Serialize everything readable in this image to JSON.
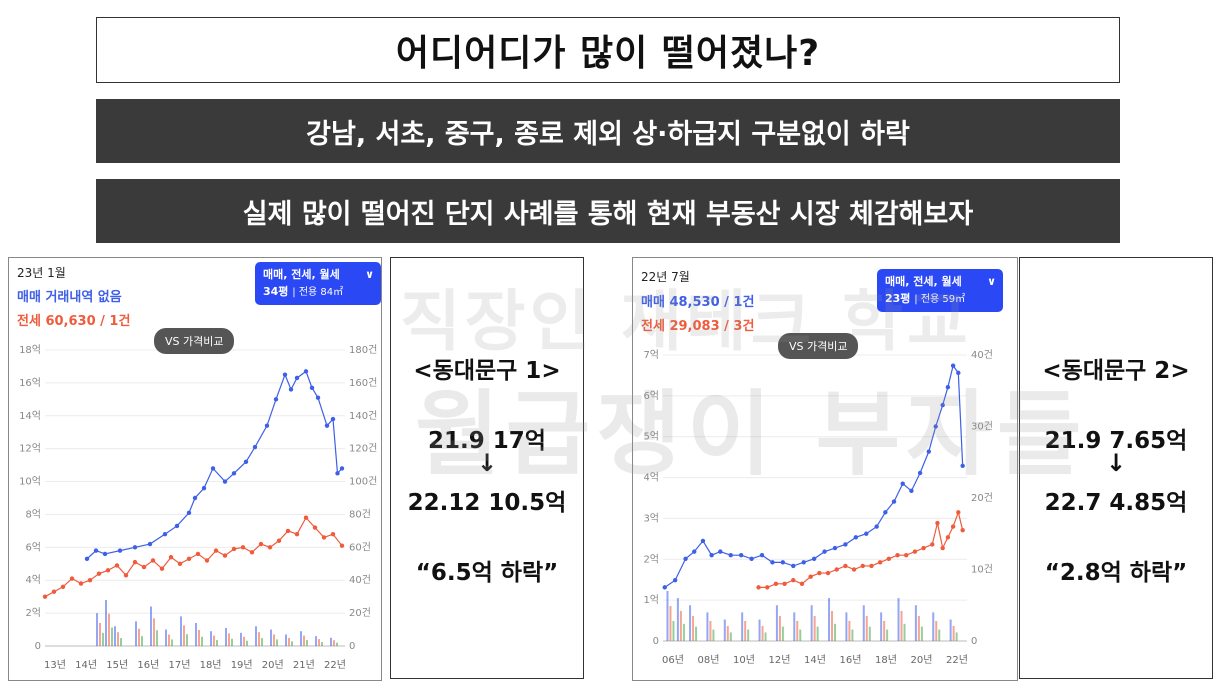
{
  "title": "어디어디가 많이 떨어졌나?",
  "banner1": "강남, 서초, 중구, 종로 제외 상·하급지 구분없이 하락",
  "banner2": "실제 많이 떨어진 단지 사례를 통해 현재 부동산 시장 체감해보자",
  "watermark": {
    "line1": "직장인 재테크 학교",
    "line2": "월급쟁이 부자들"
  },
  "colors": {
    "sale": "#3e5fe8",
    "jeonse": "#ef5b3b",
    "monthly": "#3fa84a",
    "filter": "#2b48f5"
  },
  "panels": [
    {
      "date": "23년 1월",
      "sale_line": "매매 거래내역 없음",
      "jeonse_line": "전세 60,630 / 1건",
      "filter_line1": "매매, 전세, 월세",
      "filter_py": "34평",
      "filter_area": "전용 84㎡",
      "compare_label": "VS 가격비교"
    },
    {
      "date": "22년 7월",
      "sale_line": "매매 48,530 / 1건",
      "jeonse_line": "전세 29,083 / 3건",
      "filter_line1": "매매, 전세, 월세",
      "filter_py": "23평",
      "filter_area": "전용 59㎡",
      "compare_label": "VS 가격비교"
    }
  ],
  "info": [
    {
      "heading": "<동대문구 1>",
      "from": "21.9 17억",
      "arrow": "↓",
      "to": "22.12 10.5억",
      "drop": "“6.5억 하락”"
    },
    {
      "heading": "<동대문구 2>",
      "from": "21.9 7.65억",
      "arrow": "↓",
      "to": "22.7 4.85억",
      "drop": "“2.8억 하락”"
    }
  ],
  "chart_data": [
    {
      "type": "line",
      "title": "",
      "x_ticks": [
        "13년",
        "14년",
        "15년",
        "16년",
        "17년",
        "18년",
        "19년",
        "20년",
        "21년",
        "22년"
      ],
      "y_ticks": [
        "0",
        "2억",
        "4억",
        "6억",
        "8억",
        "10억",
        "12억",
        "14억",
        "16억",
        "18억"
      ],
      "y2_ticks": [
        "0",
        "20건",
        "40건",
        "60건",
        "80건",
        "100건",
        "120건",
        "140건",
        "160건",
        "180건"
      ],
      "ylim": [
        0,
        18
      ],
      "y2lim": [
        0,
        180
      ],
      "xlim": [
        2013.0,
        2023.0
      ],
      "series": [
        {
          "name": "매매",
          "x": [
            2014.4,
            2014.7,
            2015.0,
            2015.5,
            2016.0,
            2016.5,
            2017.0,
            2017.4,
            2017.8,
            2018.0,
            2018.3,
            2018.6,
            2019.0,
            2019.3,
            2019.7,
            2020.0,
            2020.4,
            2020.7,
            2021.0,
            2021.2,
            2021.4,
            2021.7,
            2021.9,
            2022.1,
            2022.4,
            2022.6,
            2022.75,
            2022.9
          ],
          "y": [
            5.3,
            5.8,
            5.6,
            5.8,
            6.0,
            6.2,
            6.8,
            7.3,
            8.1,
            9.0,
            9.6,
            10.8,
            10.0,
            10.5,
            11.2,
            12.1,
            13.4,
            15.0,
            16.5,
            15.6,
            16.3,
            16.7,
            15.7,
            15.1,
            13.4,
            13.8,
            10.5,
            10.8
          ]
        },
        {
          "name": "전세",
          "x": [
            2013.0,
            2013.3,
            2013.6,
            2013.9,
            2014.2,
            2014.5,
            2014.8,
            2015.1,
            2015.4,
            2015.7,
            2016.0,
            2016.3,
            2016.6,
            2016.9,
            2017.2,
            2017.5,
            2017.8,
            2018.1,
            2018.4,
            2018.7,
            2019.0,
            2019.3,
            2019.6,
            2019.9,
            2020.2,
            2020.5,
            2020.8,
            2021.1,
            2021.4,
            2021.7,
            2022.0,
            2022.3,
            2022.6,
            2022.9
          ],
          "y": [
            3.0,
            3.3,
            3.6,
            4.1,
            3.8,
            4.0,
            4.4,
            4.6,
            4.9,
            4.3,
            5.1,
            4.8,
            5.2,
            4.7,
            5.4,
            5.0,
            5.3,
            5.6,
            5.2,
            5.8,
            5.5,
            5.9,
            6.0,
            5.7,
            6.2,
            6.0,
            6.4,
            7.0,
            6.8,
            7.8,
            7.2,
            6.6,
            6.8,
            6.1
          ]
        },
        {
          "name": "거래량",
          "style": "bars",
          "x": [
            2014.7,
            2015.0,
            2015.3,
            2016.0,
            2016.5,
            2017.0,
            2017.5,
            2018.0,
            2018.5,
            2019.0,
            2019.5,
            2020.0,
            2020.5,
            2021.0,
            2021.5,
            2022.0,
            2022.5
          ],
          "y": [
            20,
            28,
            12,
            15,
            24,
            10,
            18,
            14,
            9,
            11,
            8,
            12,
            10,
            7,
            9,
            6,
            5
          ]
        }
      ]
    },
    {
      "type": "line",
      "title": "",
      "x_ticks": [
        "06년",
        "08년",
        "10년",
        "12년",
        "14년",
        "16년",
        "18년",
        "20년",
        "22년"
      ],
      "y_ticks": [
        "0",
        "1억",
        "2억",
        "3억",
        "4억",
        "5억",
        "6억",
        "7억"
      ],
      "y2_ticks": [
        "0",
        "10건",
        "20건",
        "30건",
        "40건"
      ],
      "ylim": [
        0,
        8
      ],
      "y2lim": [
        0,
        40
      ],
      "xlim": [
        2005.5,
        2023.0
      ],
      "series": [
        {
          "name": "매매",
          "x": [
            2005.6,
            2006.2,
            2006.8,
            2007.3,
            2007.8,
            2008.3,
            2008.8,
            2009.4,
            2010.0,
            2010.6,
            2011.2,
            2011.8,
            2012.4,
            2013.0,
            2013.6,
            2014.2,
            2014.8,
            2015.4,
            2016.0,
            2016.6,
            2017.2,
            2017.8,
            2018.3,
            2018.8,
            2019.3,
            2019.8,
            2020.3,
            2020.8,
            2021.2,
            2021.6,
            2021.9,
            2022.2,
            2022.5,
            2022.75
          ],
          "y": [
            1.5,
            1.7,
            2.3,
            2.5,
            2.8,
            2.4,
            2.5,
            2.4,
            2.4,
            2.3,
            2.4,
            2.2,
            2.2,
            2.1,
            2.2,
            2.3,
            2.5,
            2.6,
            2.7,
            2.9,
            3.0,
            3.2,
            3.6,
            3.9,
            4.4,
            4.2,
            4.7,
            5.3,
            6.0,
            6.6,
            7.1,
            7.7,
            7.5,
            4.9
          ]
        },
        {
          "name": "전세",
          "x": [
            2011.0,
            2011.5,
            2012.0,
            2012.5,
            2013.0,
            2013.5,
            2014.0,
            2014.5,
            2015.0,
            2015.5,
            2016.0,
            2016.5,
            2017.0,
            2017.5,
            2018.0,
            2018.5,
            2019.0,
            2019.5,
            2020.0,
            2020.5,
            2021.0,
            2021.3,
            2021.6,
            2021.9,
            2022.2,
            2022.5,
            2022.75
          ],
          "y": [
            1.5,
            1.5,
            1.6,
            1.6,
            1.7,
            1.6,
            1.8,
            1.9,
            1.9,
            2.0,
            2.1,
            2.0,
            2.1,
            2.1,
            2.2,
            2.3,
            2.4,
            2.4,
            2.5,
            2.6,
            2.7,
            3.3,
            2.6,
            2.9,
            3.2,
            3.6,
            3.1
          ]
        },
        {
          "name": "거래량",
          "style": "bars",
          "x": [
            2005.7,
            2006.3,
            2007.0,
            2008.0,
            2009.0,
            2010.0,
            2011.0,
            2012.0,
            2013.0,
            2014.0,
            2015.0,
            2016.0,
            2017.0,
            2018.0,
            2019.0,
            2020.0,
            2021.0,
            2022.0
          ],
          "y": [
            7,
            6,
            5,
            4,
            3,
            4,
            3,
            5,
            4,
            5,
            6,
            4,
            5,
            4,
            6,
            5,
            4,
            3
          ]
        }
      ]
    }
  ]
}
